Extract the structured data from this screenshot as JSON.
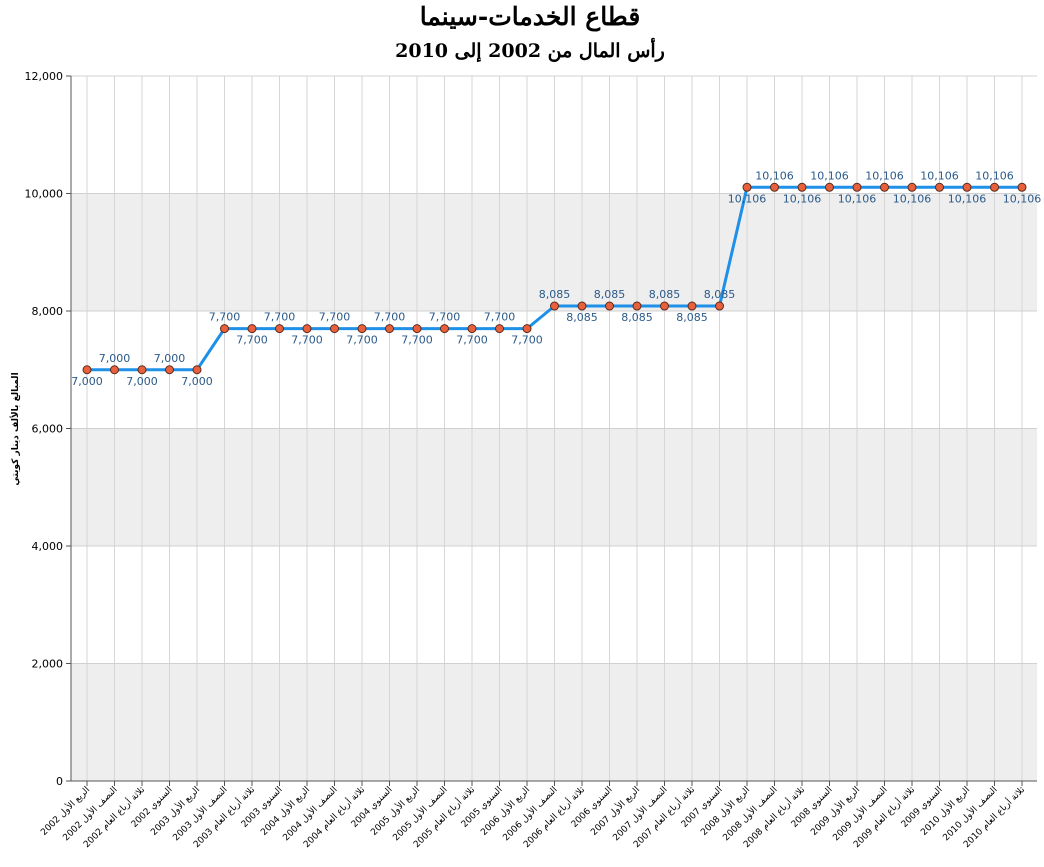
{
  "chart_data": {
    "type": "line",
    "title": "قطاع الخدمات-سينما",
    "subtitle": "رأس المال من 2002 إلى 2010",
    "ylabel": "المبالغ بالألف دينار كويتي",
    "xlabel": "",
    "ylim": [
      0,
      12000
    ],
    "yticks": [
      0,
      2000,
      4000,
      6000,
      8000,
      10000,
      12000
    ],
    "ytick_labels": [
      "0",
      "2,000",
      "4,000",
      "6,000",
      "8,000",
      "10,000",
      "12,000"
    ],
    "grid": true,
    "band_colors": [
      "#eeeeee",
      "#ffffff"
    ],
    "line_color": "#1e90e8",
    "marker_color": "#e8603c",
    "categories": [
      "الربع الأول 2002",
      "النصف الأول 2002",
      "ثلاثة أرباع العام 2002",
      "السنوي 2002",
      "الربع الأول 2003",
      "النصف الأول 2003",
      "ثلاثة أرباع العام 2003",
      "السنوي 2003",
      "الربع الأول 2004",
      "النصف الأول 2004",
      "ثلاثة أرباع العام 2004",
      "السنوي 2004",
      "الربع الأول 2005",
      "النصف الأول 2005",
      "ثلاثة أرباع العام 2005",
      "السنوي 2005",
      "الربع الأول 2006",
      "النصف الأول 2006",
      "ثلاثة أرباع العام 2006",
      "السنوي 2006",
      "الربع الأول 2007",
      "النصف الأول 2007",
      "ثلاثة أرباع العام 2007",
      "السنوي 2007",
      "الربع الأول 2008",
      "النصف الأول 2008",
      "ثلاثة أرباع العام 2008",
      "السنوي 2008",
      "الربع الأول 2009",
      "النصف الأول 2009",
      "ثلاثة أرباع العام 2009",
      "السنوي 2009",
      "الربع الأول 2010",
      "النصف الأول 2010",
      "ثلاثة أرباع العام 2010"
    ],
    "series": [
      {
        "values": [
          7000,
          7000,
          7000,
          7000,
          7000,
          7700,
          7700,
          7700,
          7700,
          7700,
          7700,
          7700,
          7700,
          7700,
          7700,
          7700,
          7700,
          8085,
          8085,
          8085,
          8085,
          8085,
          8085,
          8085,
          10106,
          10106,
          10106,
          10106,
          10106,
          10106,
          10106,
          10106,
          10106,
          10106,
          10106
        ],
        "data_labels": [
          "7,000",
          "7,000",
          "7,000",
          "7,000",
          "7,000",
          "7,700",
          "7,700",
          "7,700",
          "7,700",
          "7,700",
          "7,700",
          "7,700",
          "7,700",
          "7,700",
          "7,700",
          "7,700",
          "7,700",
          "8,085",
          "8,085",
          "8,085",
          "8,085",
          "8,085",
          "8,085",
          "8,085",
          "10,106",
          "10,106",
          "10,106",
          "10,106",
          "10,106",
          "10,106",
          "10,106",
          "10,106",
          "10,106",
          "10,106",
          "10,106"
        ]
      }
    ]
  }
}
